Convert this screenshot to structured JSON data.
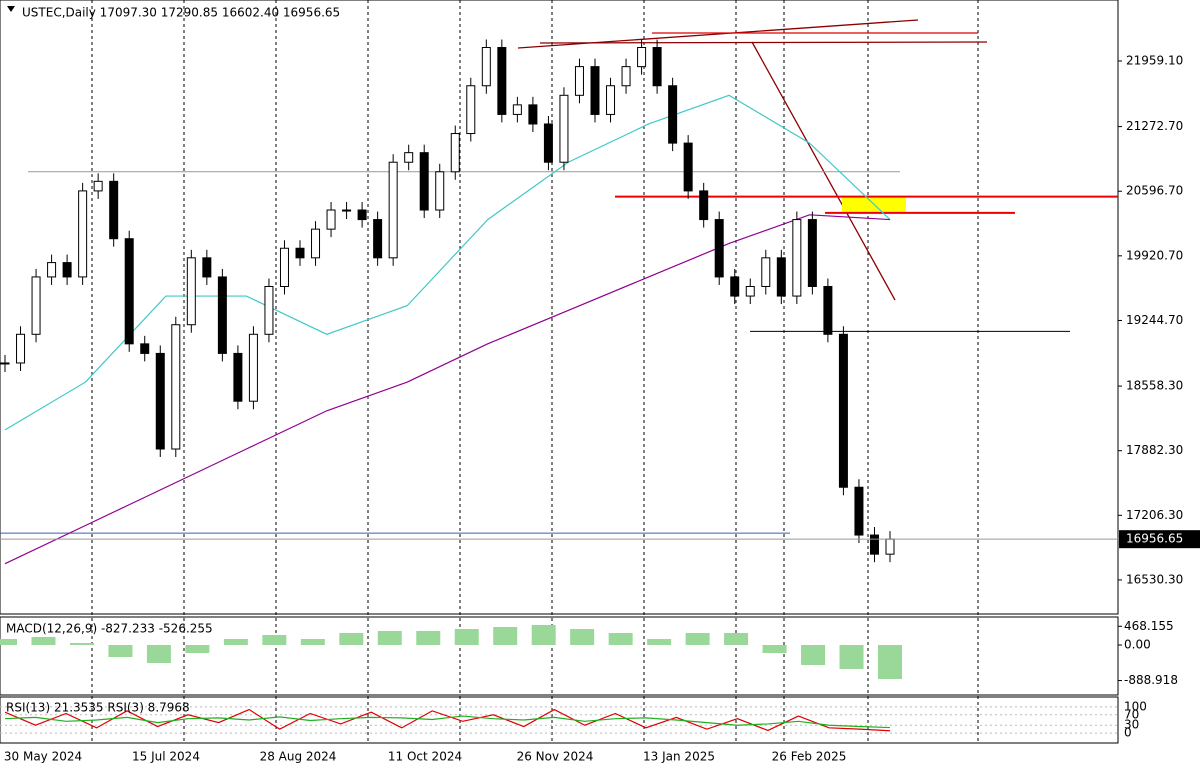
{
  "header": "USTEC,Daily  17097.30 17290.85 16602.40 16956.65",
  "price": {
    "ylim": [
      16174,
      22597
    ],
    "closes": [
      18800,
      19100,
      19700,
      19850,
      19700,
      20600,
      20700,
      20100,
      19000,
      18900,
      17900,
      19200,
      19900,
      19700,
      18900,
      18400,
      19100,
      19600,
      20000,
      19900,
      20200,
      20400,
      20400,
      20300,
      19900,
      20900,
      21000,
      20400,
      20800,
      21200,
      21700,
      22100,
      21400,
      21500,
      21300,
      20900,
      21600,
      21900,
      21400,
      21700,
      21900,
      22100,
      21700,
      21100,
      20600,
      20300,
      19700,
      19500,
      19600,
      19900,
      19500,
      20300,
      19600,
      19100,
      17500,
      17000,
      16800,
      16956.65
    ],
    "ma_fast": [
      18100,
      18600,
      19500,
      19500,
      19100,
      19400,
      20300,
      20900,
      21300,
      21600,
      21100,
      20300
    ],
    "ma_slow": [
      16700,
      17100,
      17500,
      17900,
      18300,
      18600,
      19000,
      19350,
      19700,
      20050,
      20350,
      20300
    ],
    "levels": [
      20800,
      20540,
      20370,
      19130,
      17020
    ],
    "yticks": [
      {
        "value": 21959.1,
        "label": "21959.10"
      },
      {
        "value": 21272.7,
        "label": "21272.70"
      },
      {
        "value": 20596.7,
        "label": "20596.70"
      },
      {
        "value": 19920.7,
        "label": "19920.70"
      },
      {
        "value": 19244.7,
        "label": "19244.70"
      },
      {
        "value": 18558.3,
        "label": "18558.30"
      },
      {
        "value": 17882.3,
        "label": "17882.30"
      },
      {
        "value": 17206.3,
        "label": "17206.30"
      },
      {
        "value": 16530.3,
        "label": "16530.30"
      }
    ],
    "current": {
      "value": 16956.65,
      "label": "16956.65"
    }
  },
  "macd": {
    "label": "MACD(12,26,9) -827.233 -526.255",
    "ylim": [
      -1250,
      700
    ],
    "histogram": [
      150,
      200,
      50,
      -300,
      -450,
      -200,
      150,
      250,
      150,
      300,
      350,
      350,
      400,
      450,
      500,
      400,
      300,
      150,
      300,
      300,
      -200,
      -500,
      -600,
      -850
    ],
    "yticks": [
      {
        "value": 468.155,
        "label": "468.155"
      },
      {
        "value": 0,
        "label": "0.00"
      },
      {
        "value": -888.918,
        "label": "-888.918"
      }
    ]
  },
  "rsi": {
    "label": "RSI(13) 21.3535  RSI(3) 8.7968",
    "ylim": [
      -38,
      138
    ],
    "slow": [
      55,
      60,
      45,
      50,
      60,
      40,
      55,
      58,
      50,
      62,
      48,
      55,
      60,
      58,
      52,
      65,
      55,
      50,
      60,
      45,
      55,
      58,
      50,
      40,
      30,
      35,
      45,
      30,
      25,
      21
    ],
    "fast": [
      80,
      30,
      75,
      20,
      85,
      25,
      70,
      40,
      90,
      15,
      75,
      35,
      80,
      20,
      85,
      45,
      70,
      25,
      90,
      30,
      75,
      20,
      60,
      15,
      55,
      10,
      65,
      20,
      15,
      9
    ],
    "yticks": [
      100,
      70,
      30,
      0
    ]
  },
  "dates": [
    "30 May 2024",
    "15 Jul 2024",
    "28 Aug 2024",
    "11 Oct 2024",
    "26 Nov 2024",
    "13 Jan 2025",
    "26 Feb 2025"
  ]
}
